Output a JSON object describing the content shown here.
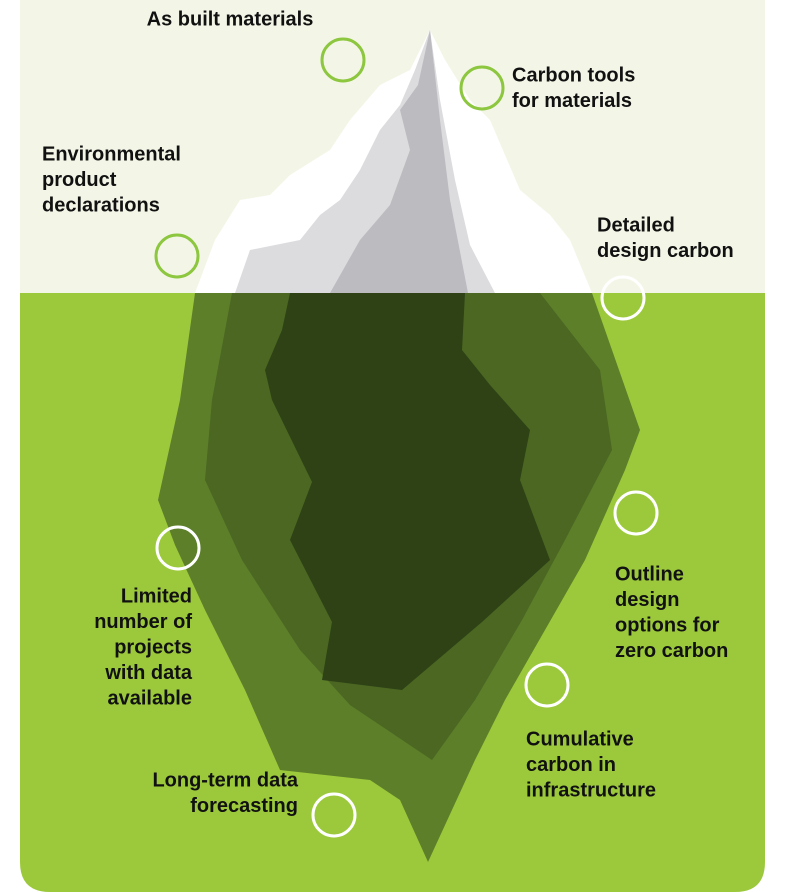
{
  "labels": [
    {
      "lines": [
        "As built materials"
      ]
    },
    {
      "lines": [
        "Carbon tools",
        "for materials"
      ]
    },
    {
      "lines": [
        "Environmental",
        "product",
        "declarations"
      ]
    },
    {
      "lines": [
        "Detailed",
        "design carbon"
      ]
    },
    {
      "lines": [
        "Outline",
        "design",
        "options for",
        "zero carbon"
      ]
    },
    {
      "lines": [
        "Limited",
        "number of",
        "projects",
        "with data",
        "available"
      ]
    },
    {
      "lines": [
        "Cumulative",
        "carbon in",
        "infrastructure"
      ]
    },
    {
      "lines": [
        "Long-term data",
        "forecasting"
      ]
    }
  ]
}
